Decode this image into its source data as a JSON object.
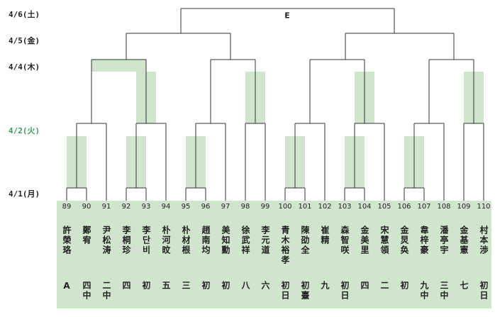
{
  "dates": [
    "4/6(土)",
    "4/5(金)",
    "4/4(木)",
    "4/2(火)",
    "4/1(月)"
  ],
  "final_label": "E",
  "players": [
    {
      "number": 89,
      "name": "許榮珞",
      "rank": "A"
    },
    {
      "number": 90,
      "name": "鄭宥",
      "rank": "四中"
    },
    {
      "number": 91,
      "name": "尹松涛",
      "rank": "二中"
    },
    {
      "number": 92,
      "name": "李桐珍",
      "rank": "四"
    },
    {
      "number": 93,
      "name": "李단비",
      "rank": "初"
    },
    {
      "number": 94,
      "name": "朴河旼",
      "rank": "五"
    },
    {
      "number": 95,
      "name": "朴材根",
      "rank": "三"
    },
    {
      "number": 96,
      "name": "趙南均",
      "rank": "初"
    },
    {
      "number": 97,
      "name": "美知勳",
      "rank": "初"
    },
    {
      "number": 98,
      "name": "徐武祥",
      "rank": "八"
    },
    {
      "number": 99,
      "name": "李元道",
      "rank": "六"
    },
    {
      "number": 100,
      "name": "青木裕孝",
      "rank": "初日"
    },
    {
      "number": 101,
      "name": "陳劭全",
      "rank": "初臺"
    },
    {
      "number": 102,
      "name": "崔精",
      "rank": "九"
    },
    {
      "number": 103,
      "name": "森智咲",
      "rank": "初日"
    },
    {
      "number": 104,
      "name": "金美里",
      "rank": "四"
    },
    {
      "number": 105,
      "name": "宋慧領",
      "rank": "二"
    },
    {
      "number": 106,
      "name": "金炅奂",
      "rank": "初"
    },
    {
      "number": 107,
      "name": "韋梓豪",
      "rank": "九中"
    },
    {
      "number": 108,
      "name": "潘亭宇",
      "rank": "三中"
    },
    {
      "number": 109,
      "name": "金基憲",
      "rank": "七"
    },
    {
      "number": 110,
      "name": "村本渉",
      "rank": "初日"
    }
  ]
}
